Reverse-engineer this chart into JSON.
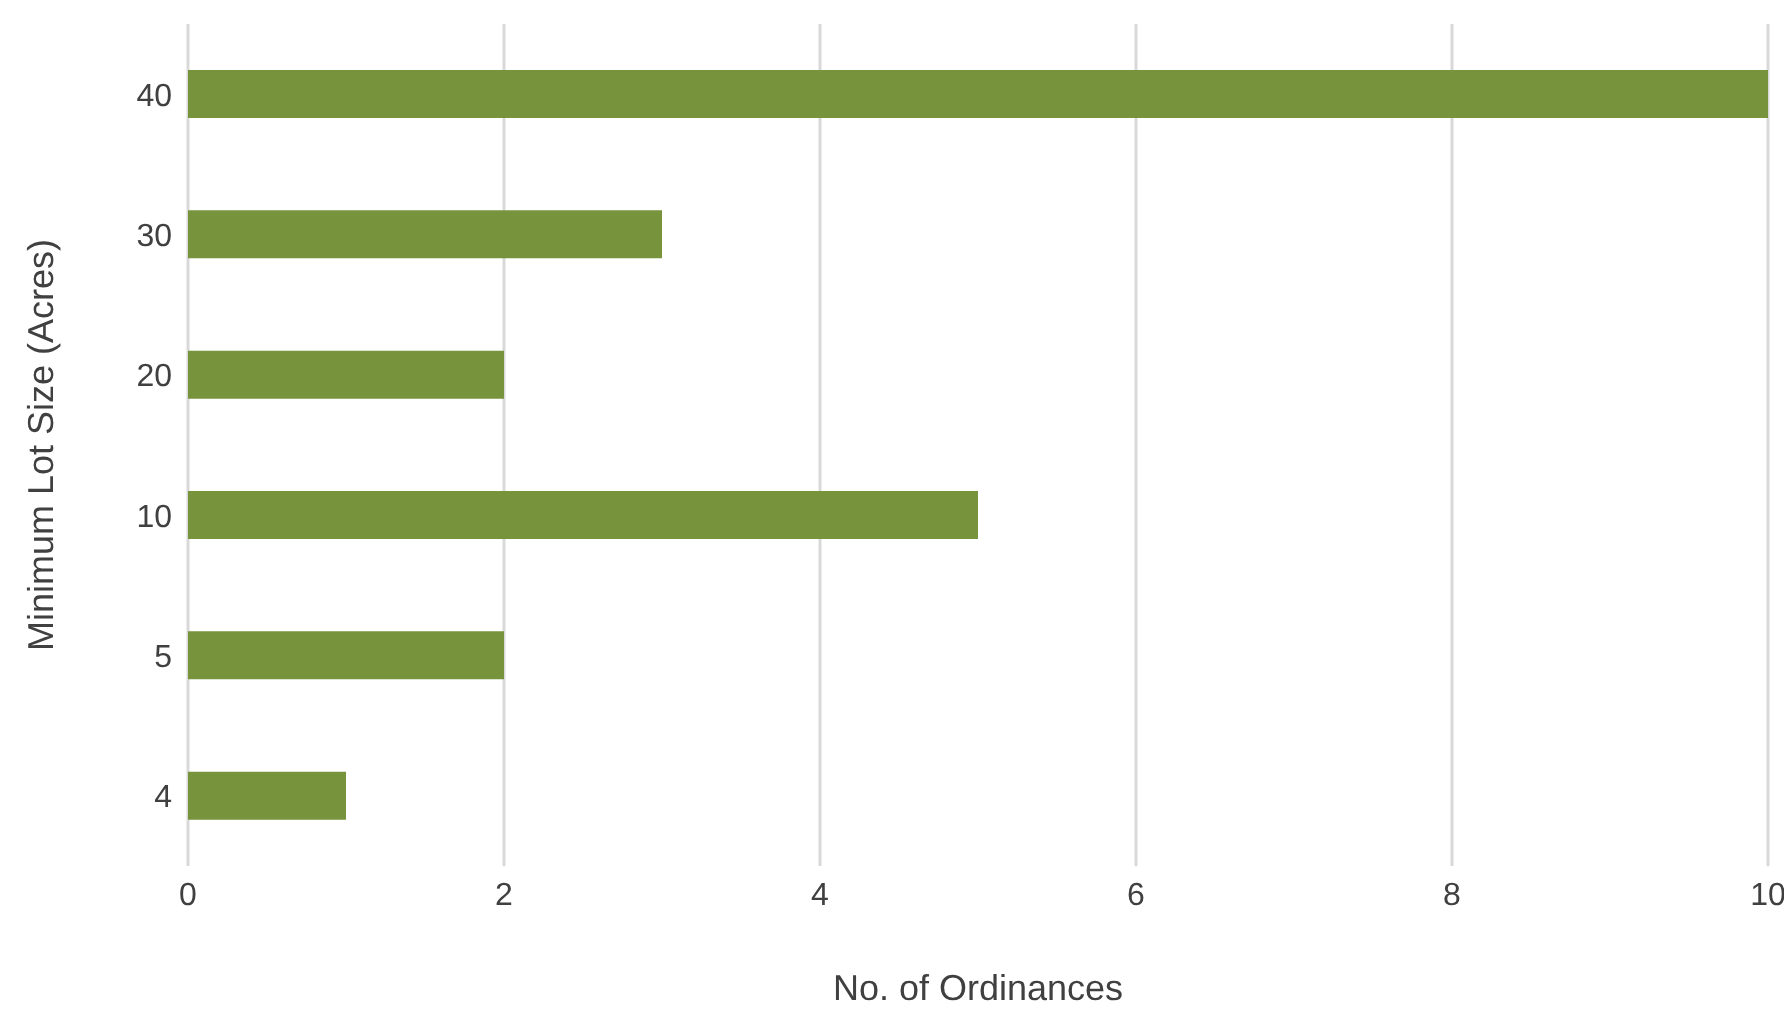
{
  "chart_data": {
    "type": "bar",
    "orientation": "horizontal",
    "xlabel": "No. of Ordinances",
    "ylabel": "Minimum Lot Size (Acres)",
    "categories": [
      "40",
      "30",
      "20",
      "10",
      "5",
      "4"
    ],
    "values": [
      10,
      3,
      2,
      5,
      2,
      1
    ],
    "color": "#77933c",
    "xlim": [
      0,
      10
    ],
    "xticks": [
      0,
      2,
      4,
      6,
      8,
      10
    ],
    "grid": "x"
  }
}
